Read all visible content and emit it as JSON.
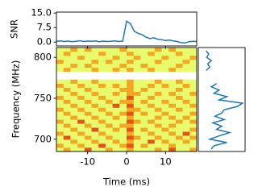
{
  "chart_data": [
    {
      "type": "line",
      "ylabel": "SNR",
      "color": "#1f77b4",
      "x": [
        -18,
        -17,
        -16,
        -15,
        -14,
        -13,
        -12,
        -11,
        -10,
        -9,
        -8,
        -7,
        -6,
        -5,
        -4,
        -3,
        -2,
        -1,
        0,
        1,
        2,
        3,
        4,
        5,
        6,
        7,
        8,
        9,
        10,
        11,
        12,
        13,
        14,
        15,
        16,
        17,
        18
      ],
      "values": [
        0.4,
        0.6,
        0.3,
        0.5,
        0.2,
        0.4,
        0.7,
        0.3,
        0.5,
        0.4,
        0.6,
        0.2,
        0.5,
        0.3,
        0.4,
        0.6,
        0.3,
        0.5,
        10.8,
        9.5,
        5.5,
        4.5,
        3.8,
        2.5,
        1.8,
        2.2,
        1.5,
        1.2,
        0.8,
        1.0,
        0.6,
        0.3,
        -0.3,
        -0.5,
        0.2,
        0.4,
        0.3
      ],
      "xlim": [
        -18,
        18
      ],
      "ylim": [
        -2,
        15.5
      ],
      "yticks": [
        {
          "value": 15,
          "label": "15.0"
        },
        {
          "value": 7.5,
          "label": "7.5"
        },
        {
          "value": 0,
          "label": "0.0"
        }
      ]
    },
    {
      "type": "heatmap",
      "xlabel": "Time (ms)",
      "ylabel": "Frequency (MHz)",
      "xlim": [
        -18,
        18
      ],
      "ylim": [
        685,
        812
      ],
      "xticks": [
        -10,
        0,
        10
      ],
      "yticks": [
        700,
        750,
        800
      ],
      "colormap": [
        "#e8fb6c",
        "#f5a623",
        "#e8501a"
      ],
      "z": [
        [
          0,
          1,
          0,
          0,
          2,
          0,
          0,
          1,
          0,
          0,
          1,
          0,
          0,
          0,
          1,
          0,
          2,
          0,
          0,
          1
        ],
        [
          1,
          0,
          0,
          1,
          0,
          0,
          2,
          0,
          0,
          1,
          2,
          0,
          1,
          0,
          0,
          0,
          1,
          0,
          0,
          0
        ],
        [
          0,
          0,
          1,
          0,
          0,
          1,
          0,
          0,
          1,
          0,
          1,
          0,
          0,
          2,
          0,
          1,
          0,
          0,
          1,
          0
        ],
        [
          0,
          2,
          0,
          0,
          1,
          0,
          0,
          1,
          0,
          0,
          2,
          1,
          0,
          0,
          1,
          0,
          0,
          1,
          0,
          1
        ],
        [
          1,
          0,
          0,
          1,
          0,
          0,
          1,
          0,
          0,
          0,
          1,
          0,
          0,
          1,
          0,
          0,
          1,
          0,
          2,
          0
        ],
        [
          0,
          0,
          1,
          0,
          0,
          2,
          0,
          0,
          1,
          0,
          2,
          0,
          1,
          0,
          0,
          1,
          0,
          0,
          0,
          1
        ],
        [
          0,
          1,
          0,
          0,
          1,
          0,
          0,
          1,
          0,
          1,
          1,
          0,
          0,
          0,
          1,
          0,
          1,
          0,
          0,
          0
        ],
        [
          1,
          0,
          0,
          2,
          0,
          0,
          1,
          0,
          0,
          0,
          2,
          1,
          0,
          1,
          0,
          0,
          0,
          1,
          0,
          1
        ],
        [
          0,
          0,
          1,
          0,
          0,
          1,
          0,
          0,
          1,
          0,
          1,
          0,
          0,
          0,
          1,
          0,
          1,
          0,
          1,
          0
        ],
        [
          0,
          1,
          0,
          0,
          1,
          0,
          0,
          1,
          0,
          1,
          2,
          0,
          1,
          0,
          0,
          1,
          0,
          0,
          0,
          1
        ],
        [
          1,
          0,
          0,
          1,
          0,
          0,
          1,
          0,
          0,
          0,
          1,
          1,
          0,
          0,
          1,
          0,
          0,
          1,
          0,
          0
        ],
        [
          0,
          0,
          1,
          0,
          0,
          1,
          0,
          0,
          2,
          0,
          2,
          0,
          0,
          1,
          0,
          0,
          1,
          0,
          0,
          1
        ],
        [
          0,
          1,
          0,
          0,
          1,
          0,
          0,
          1,
          0,
          1,
          1,
          0,
          1,
          0,
          0,
          1,
          0,
          0,
          1,
          0
        ],
        [
          1,
          0,
          0,
          1,
          0,
          0,
          1,
          0,
          0,
          0,
          2,
          0,
          0,
          1,
          0,
          0,
          0,
          1,
          0,
          0
        ],
        [
          0,
          0,
          1,
          0,
          0,
          1,
          0,
          0,
          1,
          0,
          1,
          1,
          0,
          0,
          1,
          0,
          1,
          0,
          0,
          1
        ],
        [
          0,
          1,
          0,
          0,
          1,
          0,
          0,
          0,
          0,
          1,
          1,
          0,
          1,
          0,
          0,
          0,
          0,
          1,
          0,
          0
        ],
        [
          1,
          0,
          0,
          1,
          0,
          0,
          1,
          0,
          1,
          0,
          1,
          0,
          0,
          1,
          0,
          1,
          0,
          0,
          1,
          0
        ],
        [
          0,
          0,
          1,
          0,
          0,
          1,
          0,
          0,
          0,
          0,
          1,
          0,
          0,
          0,
          1,
          0,
          0,
          1,
          0,
          0
        ],
        null,
        null,
        [
          0,
          1,
          0,
          0,
          0,
          1,
          0,
          0,
          1,
          0,
          1,
          0,
          0,
          1,
          0,
          0,
          1,
          0,
          0,
          0
        ],
        [
          0,
          0,
          1,
          0,
          1,
          0,
          0,
          0,
          0,
          1,
          0,
          0,
          1,
          0,
          0,
          0,
          0,
          1,
          0,
          0
        ],
        [
          1,
          0,
          0,
          0,
          0,
          1,
          0,
          1,
          0,
          0,
          1,
          0,
          0,
          0,
          1,
          0,
          0,
          0,
          1,
          0
        ],
        [
          0,
          0,
          0,
          1,
          0,
          0,
          0,
          0,
          1,
          0,
          0,
          1,
          0,
          0,
          0,
          1,
          0,
          0,
          0,
          1
        ],
        [
          0,
          1,
          0,
          0,
          0,
          0,
          1,
          0,
          0,
          0,
          1,
          0,
          0,
          1,
          0,
          0,
          0,
          1,
          0,
          0
        ],
        [
          0,
          0,
          1,
          0,
          1,
          0,
          0,
          0,
          0,
          1,
          0,
          0,
          0,
          0,
          1,
          0,
          1,
          0,
          0,
          0
        ]
      ]
    },
    {
      "type": "spectrum",
      "color": "#1f77b4",
      "y": [
        688,
        692,
        696,
        700,
        704,
        708,
        712,
        716,
        720,
        724,
        728,
        732,
        736,
        740,
        744,
        748,
        752,
        756,
        760,
        764,
        768,
        772,
        776,
        780,
        784,
        788,
        792,
        796,
        800,
        804,
        808
      ],
      "values": [
        1.5,
        2.0,
        4.5,
        1.2,
        3.0,
        5.0,
        2.5,
        3.5,
        1.8,
        4.0,
        2.2,
        3.5,
        4.0,
        6.5,
        7.5,
        3.0,
        4.5,
        2.0,
        3.0,
        1.5,
        2.5,
        null,
        null,
        null,
        0.5,
        1.2,
        0.8,
        1.5,
        0.6,
        1.0,
        0.5
      ],
      "xlim": [
        -1,
        8
      ],
      "ylim": [
        685,
        812
      ]
    }
  ]
}
